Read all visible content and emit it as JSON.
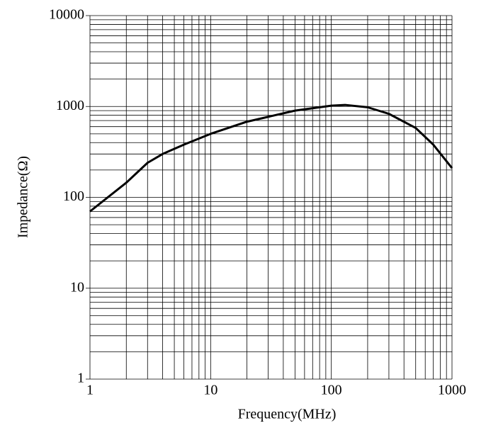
{
  "chart_data": {
    "type": "line",
    "x_label": "Frequency(MHz)",
    "y_label": "Impedance(Ω)",
    "x": [
      1,
      2,
      3,
      4,
      6,
      10,
      20,
      50,
      100,
      130,
      200,
      300,
      500,
      700,
      1000
    ],
    "series": [
      {
        "name": "Impedance",
        "color": "#000000",
        "values": [
          70,
          145,
          240,
          300,
          380,
          500,
          680,
          900,
          1020,
          1040,
          980,
          830,
          580,
          380,
          210
        ]
      }
    ],
    "xlim": [
      1,
      1000
    ],
    "ylim": [
      1,
      10000
    ],
    "xticks": [
      1,
      10,
      100,
      1000
    ],
    "yticks": [
      1,
      10,
      100,
      1000,
      10000
    ],
    "xscale": "log",
    "yscale": "log",
    "grid": true,
    "minor_grid": true
  }
}
